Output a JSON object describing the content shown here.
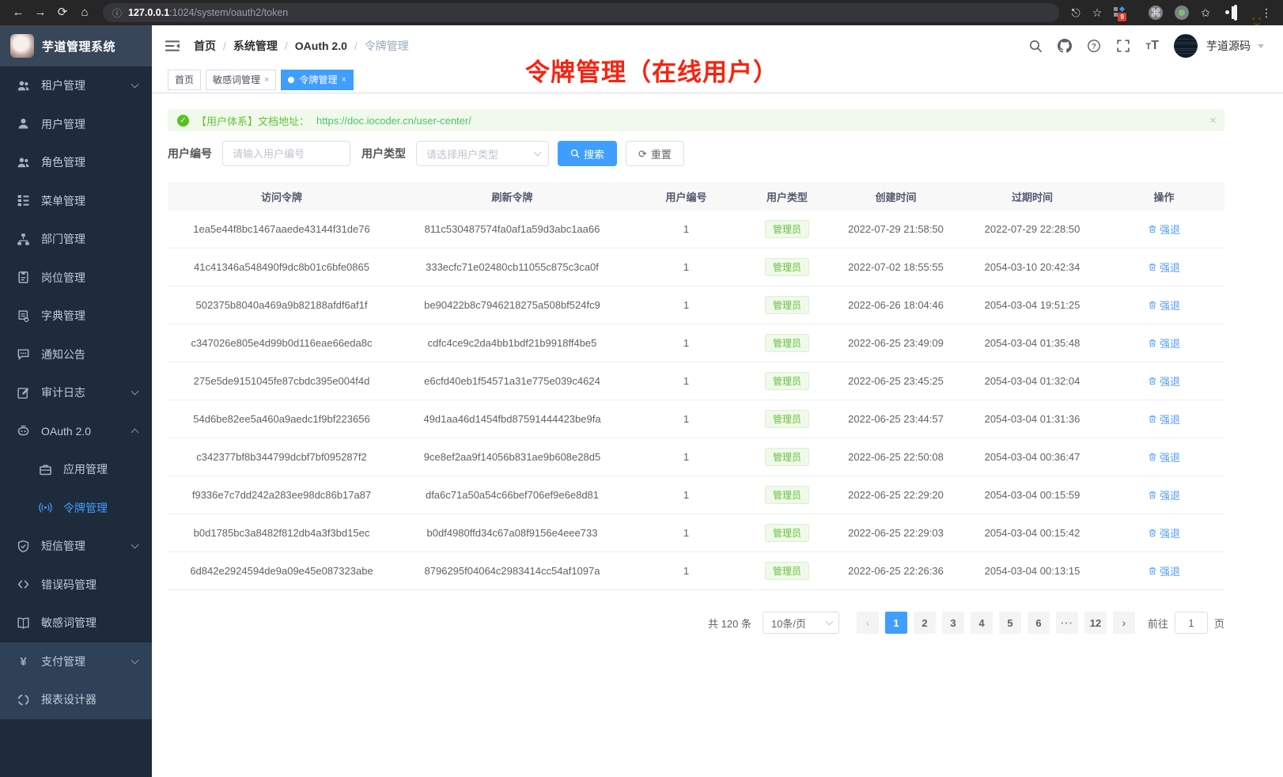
{
  "browser": {
    "url_host": "127.0.0.1",
    "url_path": ":1024/system/oauth2/token",
    "extension_badge": "9"
  },
  "app_title": "芋道管理系统",
  "sidebar": {
    "items": [
      {
        "label": "租户管理",
        "icon": "tenant",
        "chevron": "down"
      },
      {
        "label": "用户管理",
        "icon": "user"
      },
      {
        "label": "角色管理",
        "icon": "role"
      },
      {
        "label": "菜单管理",
        "icon": "menu-tree"
      },
      {
        "label": "部门管理",
        "icon": "dept"
      },
      {
        "label": "岗位管理",
        "icon": "post"
      },
      {
        "label": "字典管理",
        "icon": "dict"
      },
      {
        "label": "通知公告",
        "icon": "notice"
      },
      {
        "label": "审计日志",
        "icon": "audit",
        "chevron": "down"
      },
      {
        "label": "OAuth 2.0",
        "icon": "oauth",
        "chevron": "up"
      },
      {
        "label": "应用管理",
        "icon": "app",
        "child": true
      },
      {
        "label": "令牌管理",
        "icon": "token",
        "child": true,
        "active": true
      },
      {
        "label": "短信管理",
        "icon": "sms",
        "chevron": "down"
      },
      {
        "label": "错误码管理",
        "icon": "errcode"
      },
      {
        "label": "敏感词管理",
        "icon": "sensitive"
      },
      {
        "label": "支付管理",
        "icon": "pay",
        "chevron": "down",
        "root": true
      },
      {
        "label": "报表设计器",
        "icon": "report",
        "root": true
      }
    ]
  },
  "header": {
    "breadcrumb": [
      "首页",
      "系统管理",
      "OAuth 2.0",
      "令牌管理"
    ],
    "user_name": "芋道源码"
  },
  "tabs": [
    {
      "label": "首页",
      "closable": false,
      "active": false
    },
    {
      "label": "敏感词管理",
      "closable": true,
      "active": false
    },
    {
      "label": "令牌管理",
      "closable": true,
      "active": true
    }
  ],
  "annotation": "令牌管理（在线用户）",
  "alert": {
    "text": "【用户体系】文档地址：",
    "link": "https://doc.iocoder.cn/user-center/"
  },
  "filters": {
    "user_id_label": "用户编号",
    "user_id_placeholder": "请输入用户编号",
    "user_type_label": "用户类型",
    "user_type_placeholder": "请选择用户类型",
    "search_label": "搜索",
    "reset_label": "重置"
  },
  "table": {
    "columns": [
      "访问令牌",
      "刷新令牌",
      "用户编号",
      "用户类型",
      "创建时间",
      "过期时间",
      "操作"
    ],
    "action_label": "强退",
    "rows": [
      {
        "access_token": "1ea5e44f8bc1467aaede43144f31de76",
        "refresh_token": "811c530487574fa0af1a59d3abc1aa66",
        "user_id": "1",
        "user_type": "管理员",
        "create_time": "2022-07-29 21:58:50",
        "expire_time": "2022-07-29 22:28:50"
      },
      {
        "access_token": "41c41346a548490f9dc8b01c6bfe0865",
        "refresh_token": "333ecfc71e02480cb11055c875c3ca0f",
        "user_id": "1",
        "user_type": "管理员",
        "create_time": "2022-07-02 18:55:55",
        "expire_time": "2054-03-10 20:42:34"
      },
      {
        "access_token": "502375b8040a469a9b82188afdf6af1f",
        "refresh_token": "be90422b8c7946218275a508bf524fc9",
        "user_id": "1",
        "user_type": "管理员",
        "create_time": "2022-06-26 18:04:46",
        "expire_time": "2054-03-04 19:51:25"
      },
      {
        "access_token": "c347026e805e4d99b0d116eae66eda8c",
        "refresh_token": "cdfc4ce9c2da4bb1bdf21b9918ff4be5",
        "user_id": "1",
        "user_type": "管理员",
        "create_time": "2022-06-25 23:49:09",
        "expire_time": "2054-03-04 01:35:48"
      },
      {
        "access_token": "275e5de9151045fe87cbdc395e004f4d",
        "refresh_token": "e6cfd40eb1f54571a31e775e039c4624",
        "user_id": "1",
        "user_type": "管理员",
        "create_time": "2022-06-25 23:45:25",
        "expire_time": "2054-03-04 01:32:04"
      },
      {
        "access_token": "54d6be82ee5a460a9aedc1f9bf223656",
        "refresh_token": "49d1aa46d1454fbd87591444423be9fa",
        "user_id": "1",
        "user_type": "管理员",
        "create_time": "2022-06-25 23:44:57",
        "expire_time": "2054-03-04 01:31:36"
      },
      {
        "access_token": "c342377bf8b344799dcbf7bf095287f2",
        "refresh_token": "9ce8ef2aa9f14056b831ae9b608e28d5",
        "user_id": "1",
        "user_type": "管理员",
        "create_time": "2022-06-25 22:50:08",
        "expire_time": "2054-03-04 00:36:47"
      },
      {
        "access_token": "f9336e7c7dd242a283ee98dc86b17a87",
        "refresh_token": "dfa6c71a50a54c66bef706ef9e6e8d81",
        "user_id": "1",
        "user_type": "管理员",
        "create_time": "2022-06-25 22:29:20",
        "expire_time": "2054-03-04 00:15:59"
      },
      {
        "access_token": "b0d1785bc3a8482f812db4a3f3bd15ec",
        "refresh_token": "b0df4980ffd34c67a08f9156e4eee733",
        "user_id": "1",
        "user_type": "管理员",
        "create_time": "2022-06-25 22:29:03",
        "expire_time": "2054-03-04 00:15:42"
      },
      {
        "access_token": "6d842e2924594de9a09e45e087323abe",
        "refresh_token": "8796295f04064c2983414cc54af1097a",
        "user_id": "1",
        "user_type": "管理员",
        "create_time": "2022-06-25 22:26:36",
        "expire_time": "2054-03-04 00:13:15"
      }
    ]
  },
  "pagination": {
    "total": "共 120 条",
    "page_size": "10条/页",
    "pages": [
      "1",
      "2",
      "3",
      "4",
      "5",
      "6",
      "···",
      "12"
    ],
    "active_page": "1",
    "goto_label": "前往",
    "goto_value": "1",
    "goto_suffix": "页"
  },
  "colors": {
    "primary": "#409eff",
    "success": "#67c23a",
    "annotation_red": "#f8230e",
    "sidebar_dark": "#1e2b3a",
    "sidebar_light": "#2f4156"
  }
}
